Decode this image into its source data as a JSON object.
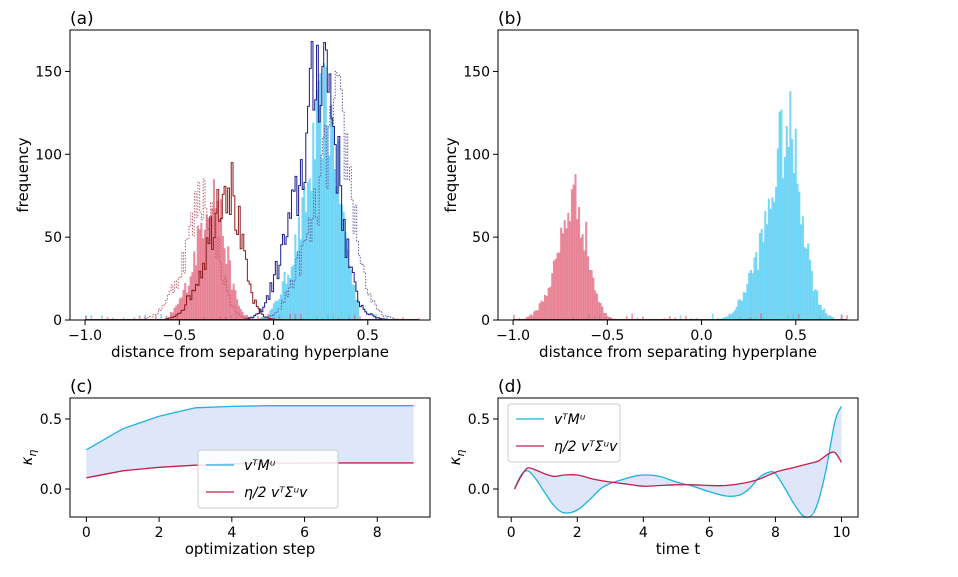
{
  "chart_data": [
    {
      "id": "a",
      "type": "histogram",
      "panel_label": "(a)",
      "xlabel": "distance from separating hyperplane",
      "ylabel": "frequency",
      "xlim": [
        -1.08,
        0.83
      ],
      "ylim": [
        0,
        175
      ],
      "xticks": [
        -1.0,
        -0.5,
        0.0,
        0.5
      ],
      "xtick_labels": [
        "−1.0",
        "−0.5",
        "0.0",
        "0.5"
      ],
      "yticks": [
        0,
        50,
        100,
        150
      ],
      "ytick_labels": [
        "0",
        "50",
        "100",
        "150"
      ],
      "filled_series": [
        {
          "color": "#40c8f4",
          "peak_center": 0.24,
          "peak_height": 155,
          "width": 0.1,
          "range": [
            -0.08,
            0.45
          ]
        },
        {
          "color": "#e05d75",
          "peak_center": -0.35,
          "peak_height": 85,
          "width": 0.08,
          "range": [
            -0.55,
            -0.05
          ]
        }
      ],
      "step_series": [
        {
          "color": "#1a1a8c",
          "style": "solid",
          "peak_center": 0.22,
          "peak_height": 168
        },
        {
          "color": "#8c1a1a",
          "style": "solid",
          "peak_center": -0.28,
          "peak_height": 95
        },
        {
          "color": "#6a5aa0",
          "style": "dotted",
          "peak_center": 0.3,
          "peak_height": 150
        },
        {
          "color": "#c06070",
          "style": "dotted",
          "peak_center": -0.4,
          "peak_height": 85
        }
      ]
    },
    {
      "id": "b",
      "type": "histogram",
      "panel_label": "(b)",
      "xlabel": "distance from separating hyperplane",
      "ylabel": "frequency",
      "xlim": [
        -1.08,
        0.83
      ],
      "ylim": [
        0,
        175
      ],
      "xticks": [
        -1.0,
        -0.5,
        0.0,
        0.5
      ],
      "xtick_labels": [
        "−1.0",
        "−0.5",
        "0.0",
        "0.5"
      ],
      "yticks": [
        0,
        50,
        100,
        150
      ],
      "ytick_labels": [
        "0",
        "50",
        "100",
        "150"
      ],
      "filled_series": [
        {
          "color": "#40c8f4",
          "peak_center": 0.42,
          "peak_height": 138,
          "width": 0.1,
          "range": [
            0.0,
            0.7
          ]
        },
        {
          "color": "#e05d75",
          "peak_center": -0.7,
          "peak_height": 88,
          "width": 0.08,
          "range": [
            -0.95,
            -0.35
          ]
        }
      ]
    },
    {
      "id": "c",
      "type": "line",
      "panel_label": "(c)",
      "xlabel": "optimization step",
      "ylabel": "κ_η",
      "xlim": [
        -0.45,
        9.45
      ],
      "ylim": [
        -0.2,
        0.65
      ],
      "xticks": [
        0,
        2,
        4,
        6,
        8
      ],
      "xtick_labels": [
        "0",
        "2",
        "4",
        "6",
        "8"
      ],
      "yticks": [
        0.0,
        0.5
      ],
      "ytick_labels": [
        "0.0",
        "0.5"
      ],
      "legend_position": "center",
      "series": [
        {
          "name": "vᵀMᵘ",
          "color": "#1ab4e0",
          "x": [
            0,
            1,
            2,
            3,
            4,
            5,
            6,
            7,
            8,
            9
          ],
          "y": [
            0.28,
            0.43,
            0.52,
            0.58,
            0.59,
            0.595,
            0.595,
            0.595,
            0.595,
            0.595
          ]
        },
        {
          "name": "η/2 vᵀΣᵘv",
          "color": "#c0204a",
          "x": [
            0,
            1,
            2,
            3,
            4,
            5,
            6,
            7,
            8,
            9
          ],
          "y": [
            0.08,
            0.13,
            0.155,
            0.17,
            0.18,
            0.183,
            0.185,
            0.186,
            0.186,
            0.186
          ]
        }
      ]
    },
    {
      "id": "d",
      "type": "line",
      "panel_label": "(d)",
      "xlabel": "time t",
      "ylabel": "κ_η",
      "xlim": [
        -0.4,
        10.5
      ],
      "ylim": [
        -0.2,
        0.65
      ],
      "xticks": [
        0,
        2,
        4,
        6,
        8,
        10
      ],
      "xtick_labels": [
        "0",
        "2",
        "4",
        "6",
        "8",
        "10"
      ],
      "yticks": [
        0.0,
        0.5
      ],
      "ytick_labels": [
        "0.0",
        "0.5"
      ],
      "legend_position": "top-left",
      "series": [
        {
          "name": "vᵀMᵘ",
          "color": "#1ab4e0",
          "x": [
            0.1,
            0.3,
            0.5,
            0.75,
            1.0,
            1.3,
            1.6,
            2.0,
            2.4,
            2.7,
            3.0,
            3.4,
            3.8,
            4.1,
            4.5,
            5.0,
            5.5,
            6.0,
            6.5,
            6.9,
            7.2,
            7.5,
            7.8,
            8.0,
            8.3,
            8.6,
            8.9,
            9.2,
            9.5,
            9.8,
            10.0
          ],
          "y": [
            0.0,
            0.1,
            0.13,
            0.07,
            -0.02,
            -0.12,
            -0.17,
            -0.15,
            -0.07,
            0.0,
            0.04,
            0.07,
            0.095,
            0.1,
            0.09,
            0.05,
            0.02,
            -0.02,
            -0.05,
            -0.045,
            0.0,
            0.08,
            0.12,
            0.11,
            0.0,
            -0.12,
            -0.2,
            -0.15,
            0.1,
            0.48,
            0.59
          ]
        },
        {
          "name": "η/2 vᵀΣᵘv",
          "color": "#c0204a",
          "x": [
            0.1,
            0.3,
            0.5,
            0.8,
            1.0,
            1.3,
            1.6,
            2.0,
            2.5,
            3.0,
            3.5,
            4.0,
            4.5,
            5.0,
            5.5,
            6.0,
            6.5,
            7.0,
            7.5,
            8.0,
            8.5,
            9.0,
            9.3,
            9.6,
            9.8,
            10.0
          ],
          "y": [
            0.0,
            0.09,
            0.15,
            0.13,
            0.11,
            0.09,
            0.1,
            0.1,
            0.07,
            0.05,
            0.035,
            0.02,
            0.025,
            0.03,
            0.03,
            0.025,
            0.025,
            0.04,
            0.07,
            0.12,
            0.15,
            0.18,
            0.2,
            0.25,
            0.26,
            0.19
          ]
        }
      ]
    }
  ]
}
